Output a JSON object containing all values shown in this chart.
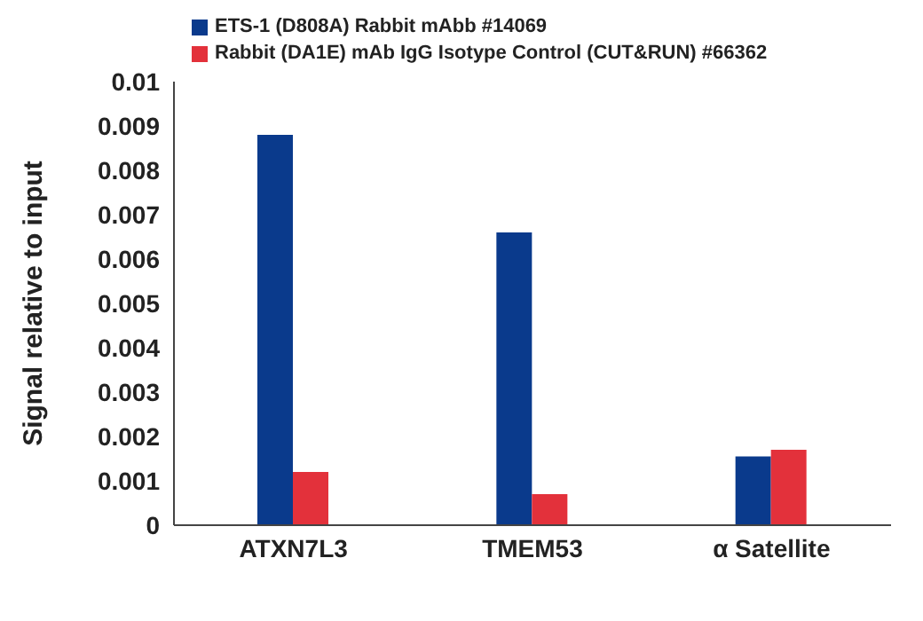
{
  "chart_data": {
    "type": "bar",
    "ylabel": "Signal relative to input",
    "categories": [
      "ATXN7L3",
      "TMEM53",
      "α Satellite"
    ],
    "series": [
      {
        "name": "ETS-1 (D808A) Rabbit mAbb #14069",
        "color": "#0a3a8c",
        "values": [
          0.0088,
          0.0066,
          0.00155
        ]
      },
      {
        "name": "Rabbit (DA1E) mAb IgG Isotype Control (CUT&RUN) #66362",
        "color": "#e3313b",
        "values": [
          0.0012,
          0.0007,
          0.0017
        ]
      }
    ],
    "ylim": [
      0,
      0.01
    ],
    "yticks": [
      0,
      0.001,
      0.002,
      0.003,
      0.004,
      0.005,
      0.006,
      0.007,
      0.008,
      0.009,
      0.01
    ],
    "legend": "top left"
  }
}
